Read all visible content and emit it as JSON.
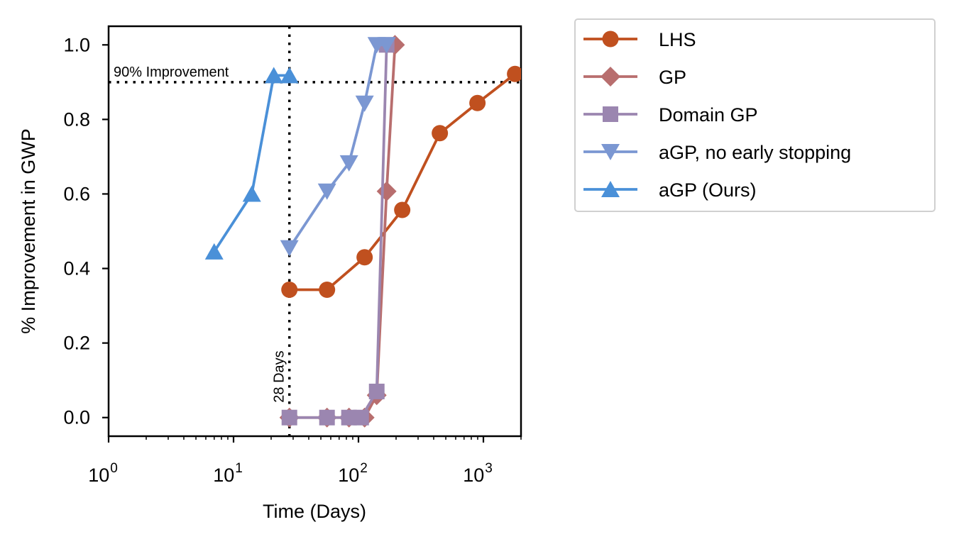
{
  "chart_data": {
    "type": "line",
    "title": "",
    "xlabel": "Time (Days)",
    "ylabel": "% Improvement in GWP",
    "xscale": "log",
    "xlim": [
      1,
      2000
    ],
    "ylim": [
      -0.05,
      1.05
    ],
    "xticks": [
      {
        "value": 1,
        "base": "10",
        "exp": "0"
      },
      {
        "value": 10,
        "base": "10",
        "exp": "1"
      },
      {
        "value": 100,
        "base": "10",
        "exp": "2"
      },
      {
        "value": 1000,
        "base": "10",
        "exp": "3"
      }
    ],
    "yticks": [
      {
        "value": 0.0,
        "label": "0.0"
      },
      {
        "value": 0.2,
        "label": "0.2"
      },
      {
        "value": 0.4,
        "label": "0.4"
      },
      {
        "value": 0.6,
        "label": "0.6"
      },
      {
        "value": 0.8,
        "label": "0.8"
      },
      {
        "value": 1.0,
        "label": "1.0"
      }
    ],
    "grid": false,
    "legend_position": "outside-right-top",
    "reference_lines": [
      {
        "orientation": "horizontal",
        "value": 0.9,
        "label": "90% Improvement"
      },
      {
        "orientation": "vertical",
        "value": 28,
        "label": "28 Days"
      }
    ],
    "series": [
      {
        "name": "LHS",
        "color": "#c0501f",
        "marker": "circle",
        "x": [
          28,
          56,
          112,
          224,
          448,
          896,
          1792
        ],
        "y": [
          0.343,
          0.343,
          0.43,
          0.557,
          0.763,
          0.844,
          0.922
        ]
      },
      {
        "name": "GP",
        "color": "#b86e6e",
        "marker": "diamond",
        "x": [
          28,
          56,
          84,
          112,
          140,
          168,
          196
        ],
        "y": [
          0.0,
          0.0,
          0.0,
          0.0,
          0.06,
          0.607,
          1.0
        ]
      },
      {
        "name": "Domain GP",
        "color": "#9b86b0",
        "marker": "square",
        "x": [
          28,
          56,
          84,
          105,
          140,
          168
        ],
        "y": [
          0.0,
          0.0,
          0.0,
          0.0,
          0.07,
          1.0
        ]
      },
      {
        "name": "aGP, no early stopping",
        "color": "#7b97d2",
        "marker": "triangle-down",
        "x": [
          28,
          56,
          84,
          112,
          140,
          168
        ],
        "y": [
          0.455,
          0.607,
          0.683,
          0.843,
          1.0,
          1.0
        ]
      },
      {
        "name": "aGP (Ours)",
        "color": "#4a90d8",
        "marker": "triangle-up",
        "x": [
          7,
          14,
          21,
          28
        ],
        "y": [
          0.445,
          0.6,
          0.918,
          0.918
        ]
      }
    ]
  }
}
